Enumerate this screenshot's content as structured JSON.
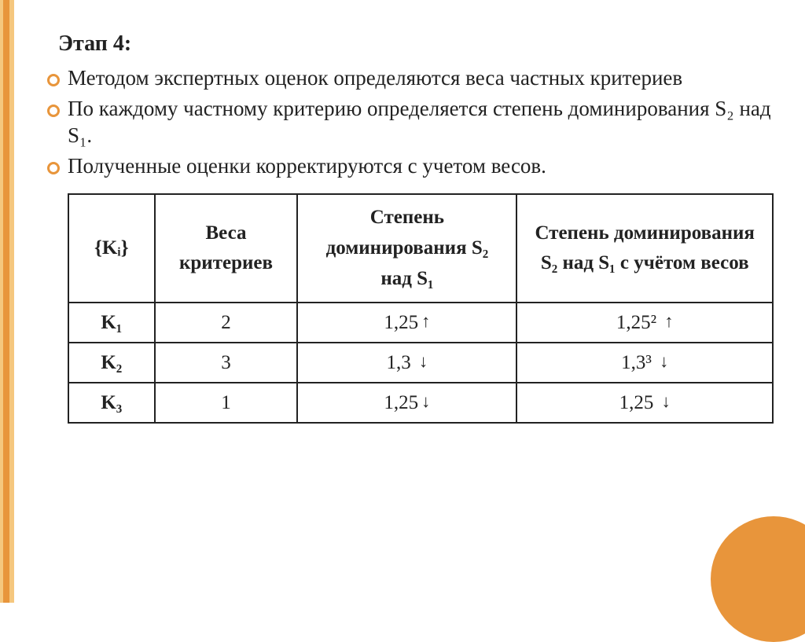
{
  "slide": {
    "stage_title": "Этап 4:",
    "bullets": [
      "Методом экспертных оценок определяются веса частных критериев",
      "По каждому частному критерию определяется степень доминирования S₂ над S₁.",
      "Полученные оценки корректируются с учетом весов."
    ],
    "table": {
      "headers": {
        "k": "{Kᵢ}",
        "weights": "Веса критериев",
        "dominance": "Степень доминирования S₂ над S₁",
        "dominance_weighted": "Степень доминирования S₂ над S₁ с учётом весов"
      },
      "rows": [
        {
          "k": "K₁",
          "weight": "2",
          "dom": "1,25",
          "dom_arrow": "↑",
          "domw": "1,25²",
          "domw_arrow": "↑"
        },
        {
          "k": "K₂",
          "weight": "3",
          "dom": "1,3",
          "dom_arrow": "↓",
          "domw": "1,3³",
          "domw_arrow": "↓"
        },
        {
          "k": "K₃",
          "weight": "1",
          "dom": "1,25",
          "dom_arrow": "↓",
          "domw": "1,25",
          "domw_arrow": "↓"
        }
      ]
    }
  },
  "style": {
    "accent_color": "#e8953b",
    "accent_light": "#f5c77e",
    "background": "#ffffff",
    "text_color": "#222222",
    "title_fontsize": 28,
    "body_fontsize": 27,
    "table_fontsize": 25,
    "table_border_color": "#222222"
  }
}
